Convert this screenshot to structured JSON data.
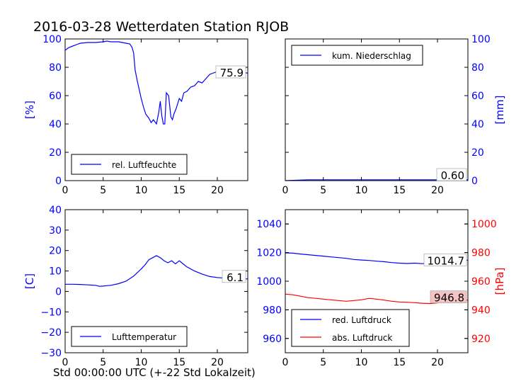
{
  "figure": {
    "title": "2016-03-28 Wetterdaten Station RJOB",
    "xcaption": "Std 00:00:00 UTC (+-22 Std Lokalzeit)"
  },
  "colors": {
    "blue": "#0000ff",
    "red": "#ff0000",
    "axis": "#000000",
    "box_fill": "#ffffff",
    "red_box_fill": "#f4c4c4"
  },
  "chart_data": [
    {
      "id": "humidity",
      "type": "line",
      "xlim": [
        0,
        24
      ],
      "ylim": [
        0,
        100
      ],
      "xticks": [
        0,
        5,
        10,
        15,
        20
      ],
      "yticks_left": [
        0,
        20,
        40,
        60,
        80,
        100
      ],
      "ylabel_left": "[%]",
      "grid": false,
      "legend": {
        "placement": "lower-left",
        "labels": [
          "rel. Luftfeuchte"
        ]
      },
      "value_label": "75.9",
      "series": [
        {
          "name": "rel. Luftfeuchte",
          "color": "#0000ff",
          "axis": "left",
          "x": [
            0,
            0.5,
            1,
            1.5,
            2,
            3,
            4,
            5,
            5.5,
            6,
            6.5,
            7,
            7.5,
            8,
            8.5,
            8.8,
            9,
            9.2,
            9.5,
            10,
            10.3,
            10.6,
            11,
            11.3,
            11.6,
            12,
            12.3,
            12.5,
            12.7,
            12.9,
            13.1,
            13.3,
            13.6,
            13.9,
            14.1,
            14.3,
            14.6,
            15,
            15.3,
            15.6,
            16,
            16.5,
            17,
            17.5,
            18,
            18.5,
            19,
            19.5,
            20,
            20.5,
            21,
            21.5,
            22,
            22.5,
            23,
            23.5,
            24
          ],
          "y": [
            92,
            94,
            95,
            96,
            97,
            97.5,
            97.5,
            98,
            98.5,
            98,
            98,
            98,
            97.5,
            97,
            96.5,
            94,
            90,
            78,
            70,
            58,
            52,
            47,
            44,
            41,
            43,
            40,
            48,
            56,
            46,
            40,
            40,
            62,
            60,
            45,
            43,
            47,
            51,
            58,
            56,
            62,
            63,
            66,
            67,
            70,
            69,
            72,
            75,
            76,
            77,
            73,
            75,
            74,
            77,
            76,
            77,
            76,
            76
          ]
        }
      ]
    },
    {
      "id": "precip",
      "type": "line",
      "xlim": [
        0,
        24
      ],
      "ylim": [
        0,
        100
      ],
      "xticks": [
        0,
        5,
        10,
        15,
        20
      ],
      "yticks_right": [
        0,
        20,
        40,
        60,
        80,
        100
      ],
      "ylabel_right": "[mm]",
      "grid": false,
      "legend": {
        "placement": "top-left",
        "labels": [
          "kum. Niederschlag"
        ]
      },
      "value_label": "0.60",
      "series": [
        {
          "name": "kum. Niederschlag",
          "color": "#0000ff",
          "axis": "right",
          "x": [
            0,
            1,
            2,
            3,
            24
          ],
          "y": [
            0,
            0.2,
            0.4,
            0.6,
            0.6
          ]
        }
      ]
    },
    {
      "id": "temperature",
      "type": "line",
      "xlim": [
        0,
        24
      ],
      "ylim": [
        -30,
        40
      ],
      "xticks": [
        0,
        5,
        10,
        15,
        20
      ],
      "yticks_left": [
        -30,
        -20,
        -10,
        0,
        10,
        20,
        30,
        40
      ],
      "ylabel_left": "[C]",
      "grid": false,
      "legend": {
        "placement": "lower-left",
        "labels": [
          "Lufttemperatur"
        ]
      },
      "value_label": "6.1",
      "series": [
        {
          "name": "Lufttemperatur",
          "color": "#0000ff",
          "axis": "left",
          "x": [
            0,
            1,
            2,
            3,
            4,
            4.5,
            5,
            5.5,
            6,
            7,
            8,
            9,
            10,
            10.5,
            11,
            11.5,
            12,
            12.5,
            13,
            13.5,
            14,
            14.5,
            15,
            15.5,
            16,
            17,
            18,
            19,
            20,
            21,
            22,
            23,
            24
          ],
          "y": [
            3.5,
            3.5,
            3.4,
            3.2,
            3,
            2.5,
            2.6,
            2.8,
            3,
            3.8,
            5,
            7.5,
            11,
            13,
            15.5,
            16.5,
            17.5,
            16.5,
            15,
            14,
            15,
            13.5,
            15,
            13.5,
            12,
            10,
            8.5,
            7.3,
            6.8,
            6.5,
            6.4,
            6.2,
            6.1
          ]
        }
      ]
    },
    {
      "id": "pressure",
      "type": "line",
      "xlim": [
        0,
        24
      ],
      "ylim": [
        950,
        1050
      ],
      "xticks": [
        0,
        5,
        10,
        15,
        20
      ],
      "yticks_left": [
        960,
        980,
        1000,
        1020,
        1040
      ],
      "yticks_right": [
        920,
        940,
        960,
        980,
        1000
      ],
      "ylim_right": [
        910,
        1010
      ],
      "ylabel_right": "[hPa]",
      "grid": false,
      "legend": {
        "placement": "lower-left",
        "labels": [
          "red. Luftdruck",
          "abs. Luftdruck"
        ]
      },
      "value_label_red": "1014.7",
      "value_label_abs": "946.8",
      "series": [
        {
          "name": "red. Luftdruck",
          "color": "#0000ff",
          "axis": "left",
          "x": [
            0,
            1,
            2,
            3,
            4,
            5,
            6,
            7,
            8,
            9,
            10,
            11,
            12,
            13,
            14,
            15,
            16,
            17,
            18,
            19,
            20,
            21,
            22,
            23,
            24
          ],
          "y": [
            1019.8,
            1019.6,
            1019,
            1018.5,
            1018,
            1017.5,
            1017,
            1016.5,
            1016,
            1015.2,
            1014.8,
            1014.5,
            1014,
            1013.6,
            1013,
            1012.6,
            1012.4,
            1012.6,
            1012.3,
            1012.6,
            1013.2,
            1013.8,
            1014.4,
            1014.7,
            1014.7
          ]
        },
        {
          "name": "abs. Luftdruck",
          "color": "#ff0000",
          "axis": "right",
          "x": [
            0,
            1,
            2,
            3,
            4,
            5,
            6,
            7,
            8,
            9,
            10,
            11,
            12,
            13,
            14,
            15,
            16,
            17,
            18,
            19,
            20,
            21,
            22,
            23,
            24
          ],
          "y": [
            951,
            950.5,
            949.5,
            948.5,
            948,
            947.5,
            947,
            946.5,
            946,
            946.5,
            947,
            948,
            947.5,
            946.8,
            946,
            945.5,
            945.3,
            945,
            944.6,
            944.4,
            944.8,
            945.5,
            946.2,
            946.6,
            946.8
          ]
        }
      ]
    }
  ]
}
